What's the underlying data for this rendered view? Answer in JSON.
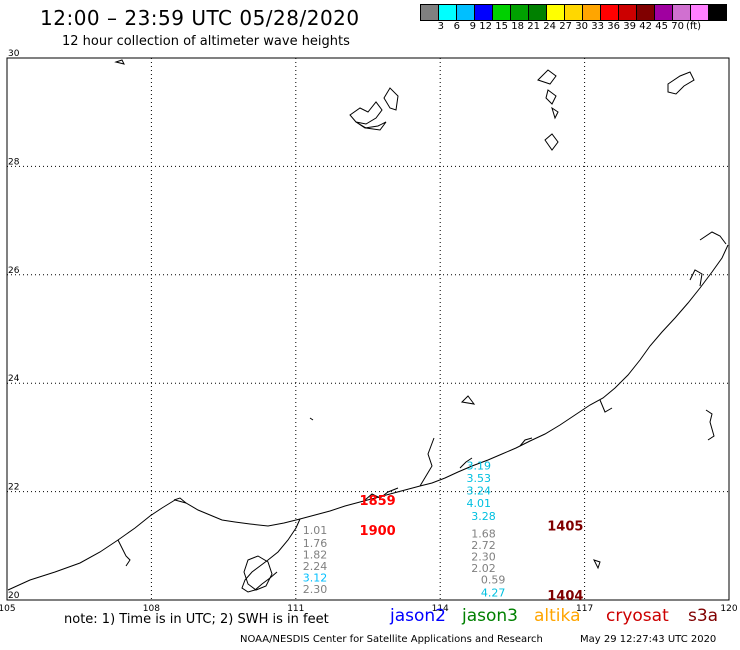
{
  "header": {
    "title": "12:00 – 23:59 UTC 05/28/2020",
    "subtitle": "12 hour collection of altimeter wave heights"
  },
  "color_scale": {
    "labels": [
      "3",
      "6",
      "9",
      "12",
      "15",
      "18",
      "21",
      "24",
      "27",
      "30",
      "33",
      "36",
      "39",
      "42",
      "45",
      "70"
    ],
    "unit": "(ft)",
    "colors": [
      "#808080",
      "#00ffff",
      "#00bfff",
      "#0000ff",
      "#00d000",
      "#00a000",
      "#008000",
      "#ffff00",
      "#ffd700",
      "#ffa500",
      "#ff0000",
      "#cc0000",
      "#800000",
      "#a000a0",
      "#d070d0",
      "#ff80ff",
      "#000000"
    ]
  },
  "map": {
    "lon_ticks": [
      "105",
      "108",
      "111",
      "114",
      "117",
      "120"
    ],
    "lat_ticks": [
      "30",
      "28",
      "26",
      "24",
      "22",
      "20"
    ],
    "time_labels": [
      {
        "text": "1859",
        "color": "#ff0000",
        "lon": 112.7,
        "lat": 21.75
      },
      {
        "text": "1900",
        "color": "#ff0000",
        "lon": 112.7,
        "lat": 21.2
      },
      {
        "text": "1405",
        "color": "#800000",
        "lon": 116.6,
        "lat": 21.28
      },
      {
        "text": "1404",
        "color": "#800000",
        "lon": 116.6,
        "lat": 20.0
      }
    ],
    "wave_heights": [
      {
        "text": "1.01",
        "color": "#808080",
        "lon": 111.4,
        "lat": 21.22
      },
      {
        "text": "1.76",
        "color": "#808080",
        "lon": 111.4,
        "lat": 20.98
      },
      {
        "text": "1.82",
        "color": "#808080",
        "lon": 111.4,
        "lat": 20.77
      },
      {
        "text": "2.24",
        "color": "#808080",
        "lon": 111.4,
        "lat": 20.55
      },
      {
        "text": "3.12",
        "color": "#00bfff",
        "lon": 111.4,
        "lat": 20.34
      },
      {
        "text": "2.30",
        "color": "#808080",
        "lon": 111.4,
        "lat": 20.13
      },
      {
        "text": "3.19",
        "color": "#00c0e0",
        "lon": 114.8,
        "lat": 22.41
      },
      {
        "text": "3.53",
        "color": "#00c0e0",
        "lon": 114.8,
        "lat": 22.18
      },
      {
        "text": "3.24",
        "color": "#00c0e0",
        "lon": 114.8,
        "lat": 21.95
      },
      {
        "text": "4.01",
        "color": "#00c0e0",
        "lon": 114.8,
        "lat": 21.72
      },
      {
        "text": "3.28",
        "color": "#00c0e0",
        "lon": 114.9,
        "lat": 21.48
      },
      {
        "text": "1.68",
        "color": "#808080",
        "lon": 114.9,
        "lat": 21.15
      },
      {
        "text": "2.72",
        "color": "#808080",
        "lon": 114.9,
        "lat": 20.94
      },
      {
        "text": "2.30",
        "color": "#808080",
        "lon": 114.9,
        "lat": 20.73
      },
      {
        "text": "2.02",
        "color": "#808080",
        "lon": 114.9,
        "lat": 20.52
      },
      {
        "text": "0.59",
        "color": "#808080",
        "lon": 115.1,
        "lat": 20.3
      },
      {
        "text": "4.27",
        "color": "#00c0e0",
        "lon": 115.1,
        "lat": 20.06
      }
    ]
  },
  "footer": {
    "note": "note: 1) Time is in UTC; 2) SWH is in feet",
    "legend": [
      {
        "label": "jason2",
        "color": "#0000ff"
      },
      {
        "label": "jason3",
        "color": "#008000"
      },
      {
        "label": "altika",
        "color": "#ffa500"
      },
      {
        "label": "cryosat",
        "color": "#cc0000"
      },
      {
        "label": "s3a",
        "color": "#800000"
      }
    ],
    "credit": "NOAA/NESDIS Center for Satellite Applications and Research",
    "timestamp": "May 29 12:27:43 UTC 2020"
  }
}
